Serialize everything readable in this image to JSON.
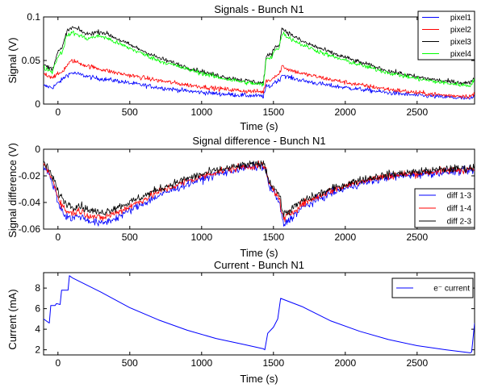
{
  "chart_data": [
    {
      "type": "line",
      "title": "Signals - Bunch N1",
      "xlabel": "Time (s)",
      "ylabel": "Signal (V)",
      "xlim": [
        -100,
        2900
      ],
      "ylim": [
        0,
        0.1
      ],
      "xticks": [
        0,
        500,
        1000,
        1500,
        2000,
        2500
      ],
      "xtick_labels": [
        "0",
        "500",
        "1000",
        "1500",
        "2000",
        "2500"
      ],
      "yticks": [
        0,
        0.05,
        0.1
      ],
      "ytick_labels": [
        "0",
        "0.05",
        "0.1"
      ],
      "legend_position": "top-right",
      "noise": 0.0025,
      "x": [
        -100,
        -40,
        0,
        30,
        60,
        100,
        150,
        200,
        250,
        300,
        350,
        400,
        500,
        700,
        900,
        1100,
        1300,
        1430,
        1450,
        1490,
        1500,
        1540,
        1560,
        1600,
        1700,
        1900,
        2100,
        2300,
        2500,
        2700,
        2870,
        2880,
        2900
      ],
      "series": [
        {
          "name": "pixel1",
          "color": "#0000ff",
          "values": [
            0.021,
            0.019,
            0.024,
            0.028,
            0.033,
            0.036,
            0.034,
            0.032,
            0.03,
            0.029,
            0.028,
            0.027,
            0.024,
            0.019,
            0.015,
            0.012,
            0.01,
            0.009,
            0.02,
            0.021,
            0.025,
            0.027,
            0.034,
            0.031,
            0.027,
            0.021,
            0.017,
            0.013,
            0.01,
            0.008,
            0.006,
            0.007,
            0.008
          ]
        },
        {
          "name": "pixel2",
          "color": "#ff0000",
          "values": [
            0.035,
            0.031,
            0.034,
            0.037,
            0.044,
            0.05,
            0.047,
            0.044,
            0.042,
            0.04,
            0.038,
            0.036,
            0.033,
            0.027,
            0.022,
            0.018,
            0.015,
            0.014,
            0.027,
            0.028,
            0.032,
            0.034,
            0.044,
            0.04,
            0.035,
            0.028,
            0.022,
            0.017,
            0.013,
            0.01,
            0.009,
            0.01,
            0.011
          ]
        },
        {
          "name": "pixel3",
          "color": "#000000",
          "values": [
            0.045,
            0.04,
            0.06,
            0.064,
            0.083,
            0.088,
            0.085,
            0.08,
            0.082,
            0.083,
            0.08,
            0.076,
            0.068,
            0.053,
            0.042,
            0.033,
            0.027,
            0.024,
            0.055,
            0.057,
            0.064,
            0.068,
            0.087,
            0.082,
            0.072,
            0.059,
            0.048,
            0.038,
            0.031,
            0.026,
            0.024,
            0.028,
            0.03
          ]
        },
        {
          "name": "pixel4",
          "color": "#00ff00",
          "values": [
            0.042,
            0.037,
            0.055,
            0.06,
            0.078,
            0.082,
            0.079,
            0.075,
            0.077,
            0.078,
            0.075,
            0.071,
            0.064,
            0.05,
            0.04,
            0.031,
            0.025,
            0.022,
            0.052,
            0.054,
            0.061,
            0.064,
            0.082,
            0.077,
            0.068,
            0.055,
            0.045,
            0.036,
            0.029,
            0.024,
            0.021,
            0.025,
            0.027
          ]
        }
      ]
    },
    {
      "type": "line",
      "title": "Signal difference - Bunch N1",
      "xlabel": "Time (s)",
      "ylabel": "Signal difference (V)",
      "xlim": [
        -100,
        2900
      ],
      "ylim": [
        -0.06,
        0
      ],
      "xticks": [
        0,
        500,
        1000,
        1500,
        2000,
        2500
      ],
      "xtick_labels": [
        "0",
        "500",
        "1000",
        "1500",
        "2000",
        "2500"
      ],
      "yticks": [
        -0.06,
        -0.04,
        -0.02,
        0
      ],
      "ytick_labels": [
        "-0.06",
        "-0.04",
        "-0.02",
        "0"
      ],
      "legend_position": "bottom-right",
      "noise": 0.0028,
      "x": [
        -100,
        -60,
        -20,
        0,
        50,
        100,
        150,
        200,
        300,
        350,
        400,
        500,
        700,
        900,
        1100,
        1300,
        1420,
        1440,
        1470,
        1500,
        1540,
        1570,
        1600,
        1700,
        1900,
        2100,
        2300,
        2500,
        2700,
        2880,
        2900
      ],
      "series": [
        {
          "name": "diff 1-3",
          "color": "#0000ff",
          "values": [
            -0.012,
            -0.02,
            -0.03,
            -0.04,
            -0.05,
            -0.052,
            -0.05,
            -0.053,
            -0.056,
            -0.054,
            -0.052,
            -0.046,
            -0.035,
            -0.026,
            -0.019,
            -0.014,
            -0.013,
            -0.014,
            -0.028,
            -0.032,
            -0.04,
            -0.057,
            -0.054,
            -0.044,
            -0.033,
            -0.026,
            -0.021,
            -0.019,
            -0.017,
            -0.016,
            -0.016
          ]
        },
        {
          "name": "diff 1-4",
          "color": "#ff0000",
          "values": [
            -0.011,
            -0.018,
            -0.028,
            -0.036,
            -0.046,
            -0.048,
            -0.046,
            -0.049,
            -0.052,
            -0.05,
            -0.048,
            -0.043,
            -0.032,
            -0.024,
            -0.017,
            -0.013,
            -0.012,
            -0.013,
            -0.026,
            -0.03,
            -0.037,
            -0.053,
            -0.05,
            -0.041,
            -0.031,
            -0.024,
            -0.02,
            -0.018,
            -0.016,
            -0.015,
            -0.015
          ]
        },
        {
          "name": "diff 2-3",
          "color": "#000000",
          "values": [
            -0.01,
            -0.016,
            -0.025,
            -0.032,
            -0.04,
            -0.043,
            -0.042,
            -0.045,
            -0.048,
            -0.046,
            -0.044,
            -0.04,
            -0.03,
            -0.022,
            -0.016,
            -0.012,
            -0.011,
            -0.012,
            -0.024,
            -0.028,
            -0.034,
            -0.049,
            -0.047,
            -0.039,
            -0.03,
            -0.023,
            -0.019,
            -0.017,
            -0.015,
            -0.014,
            -0.014
          ]
        }
      ]
    },
    {
      "type": "line",
      "title": "Current - Bunch N1",
      "xlabel": "Time (s)",
      "ylabel": "Current (mA)",
      "xlim": [
        -100,
        2900
      ],
      "ylim": [
        1.5,
        9.5
      ],
      "xticks": [
        0,
        500,
        1000,
        1500,
        2000,
        2500
      ],
      "xtick_labels": [
        "0",
        "500",
        "1000",
        "1500",
        "2000",
        "2500"
      ],
      "yticks": [
        2,
        4,
        6,
        8
      ],
      "ytick_labels": [
        "2",
        "4",
        "6",
        "8"
      ],
      "legend_position": "top-right",
      "noise": 0,
      "x": [
        -100,
        -60,
        -50,
        -20,
        -10,
        15,
        25,
        70,
        80,
        100,
        300,
        500,
        700,
        900,
        1100,
        1300,
        1430,
        1440,
        1460,
        1500,
        1530,
        1550,
        1700,
        1900,
        2100,
        2300,
        2500,
        2700,
        2870,
        2880,
        2900
      ],
      "series": [
        {
          "name": "e⁻ current",
          "color": "#0000ff",
          "values": [
            5.0,
            4.6,
            6.3,
            6.3,
            6.5,
            6.4,
            7.8,
            7.8,
            9.2,
            9.0,
            7.6,
            6.1,
            4.9,
            3.9,
            3.1,
            2.5,
            2.1,
            2.0,
            3.6,
            4.2,
            5.0,
            7.0,
            6.2,
            4.8,
            3.8,
            3.0,
            2.4,
            2.0,
            1.7,
            1.8,
            4.6
          ]
        }
      ]
    }
  ]
}
